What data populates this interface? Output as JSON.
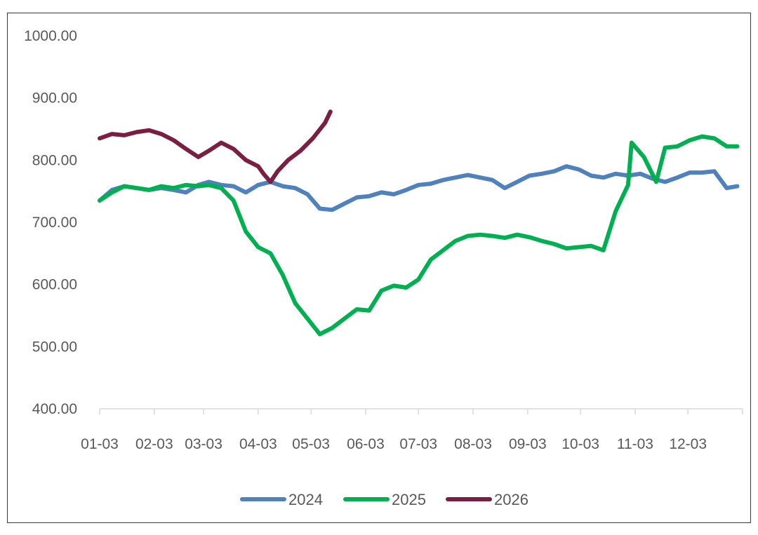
{
  "chart_data": {
    "type": "line",
    "x_axis": {
      "tick_labels": [
        "01-03",
        "02-03",
        "03-03",
        "04-03",
        "05-03",
        "06-03",
        "07-03",
        "08-03",
        "09-03",
        "10-03",
        "11-03",
        "12-03"
      ]
    },
    "y_axis": {
      "ylim": [
        400,
        1000
      ],
      "ticks": [
        400,
        500,
        600,
        700,
        800,
        900,
        1000
      ],
      "tick_labels": [
        "400.00",
        "500.00",
        "600.00",
        "700.00",
        "800.00",
        "900.00",
        "1000.00"
      ]
    },
    "grid": false,
    "legend_position": "bottom",
    "series": [
      {
        "name": "2024",
        "color": "#4f81bd",
        "points": [
          [
            "01-03",
            735
          ],
          [
            "01-10",
            752
          ],
          [
            "01-17",
            758
          ],
          [
            "01-24",
            755
          ],
          [
            "01-31",
            752
          ],
          [
            "02-07",
            755
          ],
          [
            "02-14",
            752
          ],
          [
            "02-21",
            748
          ],
          [
            "02-28",
            760
          ],
          [
            "03-06",
            765
          ],
          [
            "03-13",
            760
          ],
          [
            "03-20",
            758
          ],
          [
            "03-27",
            748
          ],
          [
            "04-03",
            760
          ],
          [
            "04-10",
            765
          ],
          [
            "04-17",
            758
          ],
          [
            "04-24",
            755
          ],
          [
            "05-01",
            745
          ],
          [
            "05-08",
            722
          ],
          [
            "05-15",
            720
          ],
          [
            "05-22",
            730
          ],
          [
            "05-29",
            740
          ],
          [
            "06-05",
            742
          ],
          [
            "06-12",
            748
          ],
          [
            "06-19",
            745
          ],
          [
            "06-26",
            752
          ],
          [
            "07-03",
            760
          ],
          [
            "07-10",
            762
          ],
          [
            "07-17",
            768
          ],
          [
            "07-24",
            772
          ],
          [
            "07-31",
            776
          ],
          [
            "08-07",
            772
          ],
          [
            "08-14",
            768
          ],
          [
            "08-21",
            755
          ],
          [
            "08-28",
            765
          ],
          [
            "09-04",
            775
          ],
          [
            "09-11",
            778
          ],
          [
            "09-18",
            782
          ],
          [
            "09-25",
            790
          ],
          [
            "10-02",
            785
          ],
          [
            "10-09",
            775
          ],
          [
            "10-16",
            772
          ],
          [
            "10-23",
            778
          ],
          [
            "10-30",
            775
          ],
          [
            "11-06",
            778
          ],
          [
            "11-13",
            770
          ],
          [
            "11-20",
            765
          ],
          [
            "11-27",
            772
          ],
          [
            "12-04",
            780
          ],
          [
            "12-11",
            780
          ],
          [
            "12-18",
            782
          ],
          [
            "12-25",
            755
          ],
          [
            "12-31",
            758
          ]
        ]
      },
      {
        "name": "2025",
        "color": "#00b050",
        "points": [
          [
            "01-03",
            735
          ],
          [
            "01-10",
            748
          ],
          [
            "01-17",
            758
          ],
          [
            "01-24",
            755
          ],
          [
            "01-31",
            752
          ],
          [
            "02-07",
            758
          ],
          [
            "02-14",
            755
          ],
          [
            "02-21",
            760
          ],
          [
            "02-28",
            758
          ],
          [
            "03-06",
            760
          ],
          [
            "03-13",
            755
          ],
          [
            "03-20",
            735
          ],
          [
            "03-27",
            685
          ],
          [
            "04-03",
            660
          ],
          [
            "04-10",
            650
          ],
          [
            "04-17",
            615
          ],
          [
            "04-24",
            570
          ],
          [
            "05-01",
            545
          ],
          [
            "05-08",
            520
          ],
          [
            "05-15",
            530
          ],
          [
            "05-22",
            545
          ],
          [
            "05-29",
            560
          ],
          [
            "06-05",
            558
          ],
          [
            "06-12",
            590
          ],
          [
            "06-19",
            598
          ],
          [
            "06-26",
            595
          ],
          [
            "07-03",
            608
          ],
          [
            "07-10",
            640
          ],
          [
            "07-17",
            655
          ],
          [
            "07-24",
            670
          ],
          [
            "07-31",
            678
          ],
          [
            "08-07",
            680
          ],
          [
            "08-14",
            678
          ],
          [
            "08-21",
            675
          ],
          [
            "08-28",
            680
          ],
          [
            "09-04",
            676
          ],
          [
            "09-11",
            670
          ],
          [
            "09-18",
            665
          ],
          [
            "09-25",
            658
          ],
          [
            "10-02",
            660
          ],
          [
            "10-09",
            662
          ],
          [
            "10-16",
            655
          ],
          [
            "10-23",
            718
          ],
          [
            "10-30",
            760
          ],
          [
            "11-01",
            828
          ],
          [
            "11-08",
            805
          ],
          [
            "11-15",
            765
          ],
          [
            "11-20",
            820
          ],
          [
            "11-27",
            822
          ],
          [
            "12-04",
            832
          ],
          [
            "12-11",
            838
          ],
          [
            "12-18",
            835
          ],
          [
            "12-25",
            822
          ],
          [
            "12-31",
            822
          ]
        ]
      },
      {
        "name": "2026",
        "color": "#7b1f42",
        "points": [
          [
            "01-03",
            835
          ],
          [
            "01-10",
            842
          ],
          [
            "01-17",
            840
          ],
          [
            "01-24",
            845
          ],
          [
            "01-31",
            848
          ],
          [
            "02-07",
            842
          ],
          [
            "02-14",
            832
          ],
          [
            "02-21",
            818
          ],
          [
            "02-28",
            805
          ],
          [
            "03-06",
            815
          ],
          [
            "03-13",
            828
          ],
          [
            "03-20",
            818
          ],
          [
            "03-27",
            800
          ],
          [
            "04-03",
            790
          ],
          [
            "04-06",
            778
          ],
          [
            "04-10",
            765
          ],
          [
            "04-14",
            782
          ],
          [
            "04-20",
            800
          ],
          [
            "04-27",
            815
          ],
          [
            "05-04",
            835
          ],
          [
            "05-11",
            860
          ],
          [
            "05-14",
            878
          ]
        ]
      }
    ]
  }
}
